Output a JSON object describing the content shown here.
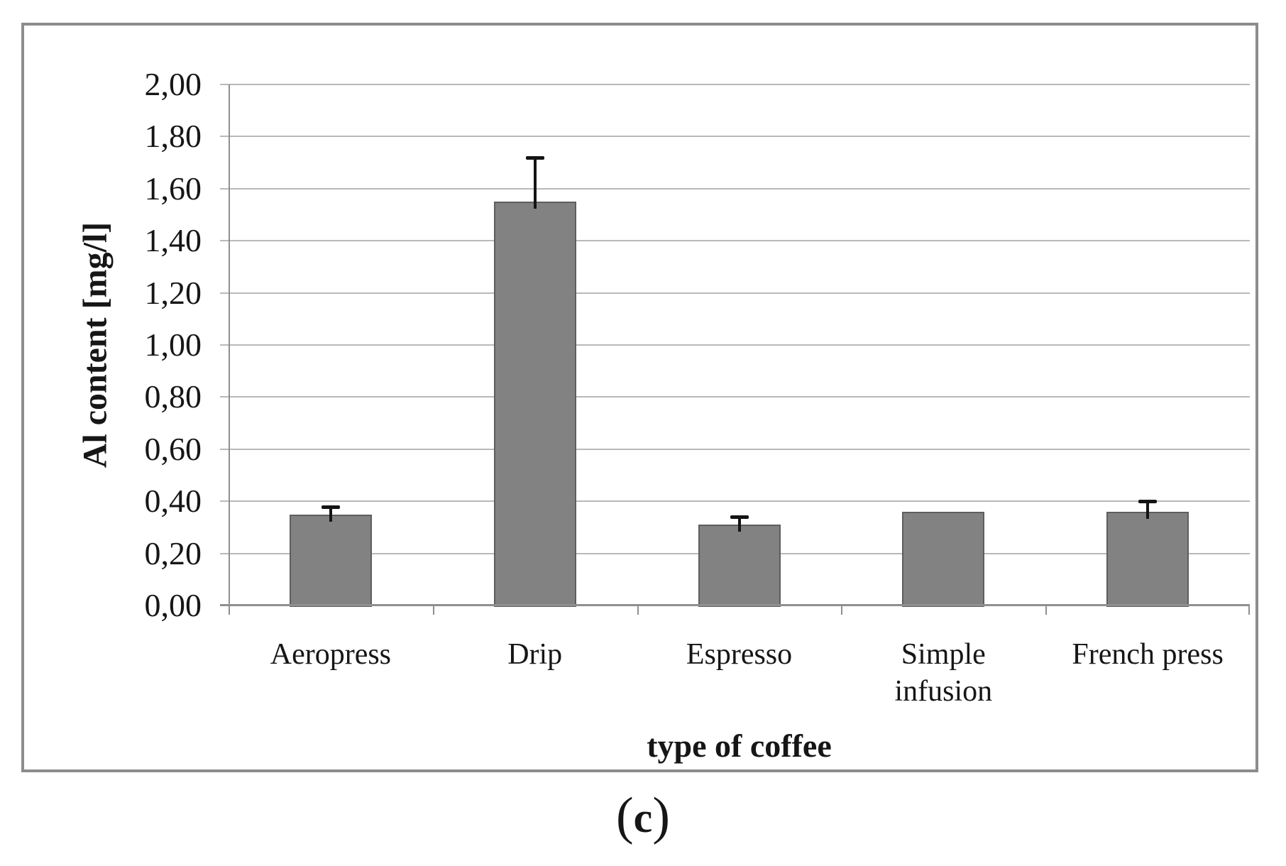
{
  "figure": {
    "caption_open": "(",
    "caption_letter": "c",
    "caption_close": ")"
  },
  "chart_data": {
    "type": "bar",
    "title": "",
    "xlabel": "type of coffee",
    "ylabel": "Al content [mg/l]",
    "categories": [
      "Aeropress",
      "Drip",
      "Espresso",
      "Simple infusion",
      "French press"
    ],
    "values": [
      0.35,
      1.55,
      0.31,
      0.36,
      0.36
    ],
    "errors_plus": [
      0.03,
      0.17,
      0.03,
      0,
      0.04
    ],
    "ylim": [
      0,
      2
    ],
    "ytick_step": 0.2,
    "ytick_labels_ascending": [
      "0,00",
      "0,20",
      "0,40",
      "0,60",
      "0,80",
      "1,00",
      "1,20",
      "1,40",
      "1,60",
      "1,80",
      "2,00"
    ],
    "decimal_separator": ",",
    "grid": true,
    "legend_position": "none",
    "bar_color": "#828282",
    "bar_border_color": "#5e5e5e",
    "gridline_color": "#b9b9b9",
    "axis_color": "#8f8f8f",
    "error_bar_color": "#141414",
    "frame_border_color": "#8c8c8c"
  }
}
